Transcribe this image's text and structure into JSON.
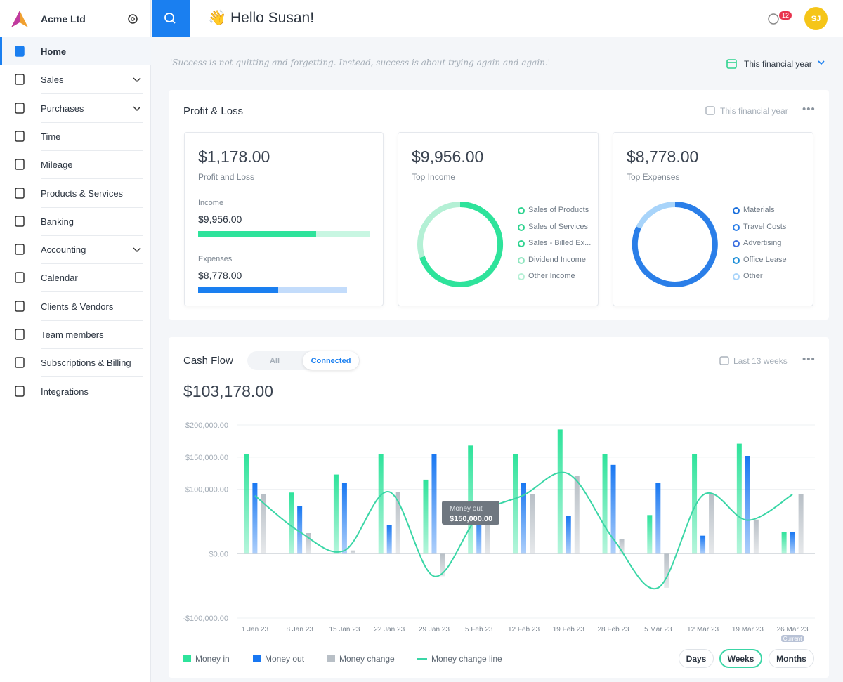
{
  "sidebar": {
    "company": "Acme Ltd",
    "items": [
      {
        "label": "Home"
      },
      {
        "label": "Sales",
        "expandable": true
      },
      {
        "label": "Purchases",
        "expandable": true
      },
      {
        "label": "Time"
      },
      {
        "label": "Mileage"
      },
      {
        "label": "Products & Services"
      },
      {
        "label": "Banking"
      },
      {
        "label": "Accounting",
        "expandable": true
      },
      {
        "label": "Calendar"
      },
      {
        "label": "Clients & Vendors"
      },
      {
        "label": "Team members"
      },
      {
        "label": "Subscriptions & Billing"
      },
      {
        "label": "Integrations"
      }
    ]
  },
  "header": {
    "greeting": "👋 Hello Susan!",
    "notifications": "12",
    "avatar": "SJ"
  },
  "quote": "'Success is not quitting and forgetting. Instead, success is about trying again and again.'",
  "period": "This financial year",
  "profit_loss": {
    "title": "Profit & Loss",
    "period": "This financial year",
    "summary": {
      "amount": "$1,178.00",
      "label": "Profit and Loss",
      "income_label": "Income",
      "income": "$9,956.00",
      "expenses_label": "Expenses",
      "expenses": "$8,778.00"
    },
    "income": {
      "amount": "$9,956.00",
      "label": "Top Income",
      "legend": [
        "Sales of Products",
        "Sales of Services",
        "Sales - Billed Ex...",
        "Dividend Income",
        "Other Income"
      ]
    },
    "expenses": {
      "amount": "$8,778.00",
      "label": "Top Expenses",
      "legend": [
        "Materials",
        "Travel Costs",
        "Advertising",
        "Office Lease",
        "Other"
      ]
    }
  },
  "cash_flow": {
    "title": "Cash Flow",
    "tabs": [
      "All",
      "Connected"
    ],
    "period": "Last 13 weeks",
    "total": "$103,178.00",
    "tooltip": {
      "label": "Money out",
      "value": "$150,000.00"
    },
    "current_label": "Current",
    "views": [
      "Days",
      "Weeks",
      "Months"
    ]
  },
  "chart_data": {
    "type": "bar",
    "categories": [
      "1 Jan 23",
      "8 Jan 23",
      "15 Jan 23",
      "22 Jan 23",
      "29 Jan 23",
      "5 Feb 23",
      "12 Feb 23",
      "19 Feb 23",
      "28 Feb 23",
      "5 Mar 23",
      "12 Mar 23",
      "19 Mar 23",
      "26 Mar 23"
    ],
    "series": [
      {
        "name": "Money in",
        "color": "#2ee39b",
        "values": [
          155000,
          95000,
          123000,
          155000,
          115000,
          168000,
          155000,
          193000,
          155000,
          60000,
          155000,
          171000,
          34000
        ]
      },
      {
        "name": "Money out",
        "color": "#1877f2",
        "values": [
          110000,
          74000,
          110000,
          45000,
          155000,
          59000,
          110000,
          59000,
          138000,
          110000,
          28000,
          152000,
          34000
        ]
      },
      {
        "name": "Money change",
        "color": "#b8bfc6",
        "values": [
          92000,
          32000,
          5000,
          96000,
          -35000,
          64000,
          92000,
          121000,
          23000,
          -53000,
          92000,
          53000,
          92000
        ]
      },
      {
        "name": "Money change line",
        "color": "#3ad6a6",
        "type": "line",
        "values": [
          90000,
          34000,
          5000,
          96000,
          -35000,
          59000,
          91000,
          124000,
          23000,
          -53000,
          91000,
          52000,
          92000
        ]
      }
    ],
    "ylim": [
      -100000,
      200000
    ],
    "yticks": [
      {
        "value": -100000,
        "label": "-$100,000.00"
      },
      {
        "value": 0,
        "label": "$0.00"
      },
      {
        "value": 100000,
        "label": "$100,000.00"
      },
      {
        "value": 150000,
        "label": "$150,000.00"
      },
      {
        "value": 200000,
        "label": "$200,000.00"
      }
    ],
    "grid": true
  }
}
